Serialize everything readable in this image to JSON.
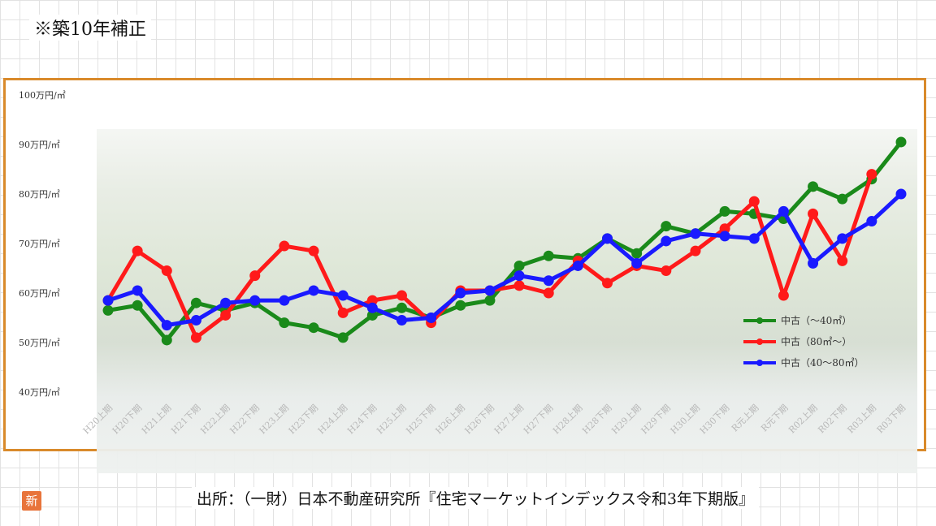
{
  "note": "※築10年補正",
  "source": "出所：（一財）日本不動産研究所『住宅マーケットインデックス令和3年下期版』",
  "stamp_char": "新",
  "chart_data": {
    "type": "line",
    "y_ticks": [
      "100万円/㎡",
      "90万円/㎡",
      "80万円/㎡",
      "70万円/㎡",
      "60万円/㎡",
      "50万円/㎡",
      "40万円/㎡"
    ],
    "ylim": [
      40,
      100
    ],
    "categories": [
      "H20上期",
      "H20下期",
      "H21上期",
      "H21下期",
      "H22上期",
      "H22下期",
      "H23上期",
      "H23下期",
      "H24上期",
      "H24下期",
      "H25上期",
      "H25下期",
      "H26上期",
      "H26下期",
      "H27上期",
      "H27下期",
      "H28上期",
      "H28下期",
      "H29上期",
      "H29下期",
      "H30上期",
      "H30下期",
      "R元上期",
      "R元下期",
      "R02上期",
      "R02下期",
      "R03上期",
      "R03下期"
    ],
    "series": [
      {
        "name": "中古（～40㎡）",
        "color": "#1a8a1a",
        "values": [
          56.5,
          57.5,
          50.5,
          58,
          56.5,
          58,
          54,
          53,
          51,
          55.5,
          57,
          55,
          57.5,
          58.5,
          65.5,
          67.5,
          67,
          71,
          68,
          73.5,
          72,
          76.5,
          76,
          75,
          81.5,
          79,
          83,
          90.5
        ]
      },
      {
        "name": "中古（80㎡～）",
        "color": "#ff1a1a",
        "values": [
          58.5,
          68.5,
          64.5,
          51,
          55.5,
          63.5,
          69.5,
          68.5,
          56,
          58.5,
          59.5,
          54,
          60.5,
          60.5,
          61.5,
          60,
          66.5,
          62,
          65.5,
          64.5,
          68.5,
          73,
          78.5,
          59.5,
          76,
          66.5,
          84,
          null
        ]
      },
      {
        "name": "中古（40～80㎡）",
        "color": "#1a1aff",
        "values": [
          58.5,
          60.5,
          53.5,
          54.5,
          58,
          58.5,
          58.5,
          60.5,
          59.5,
          57,
          54.5,
          55,
          60,
          60.5,
          63.5,
          62.5,
          65.5,
          71,
          66,
          70.5,
          72,
          71.5,
          71,
          76.5,
          66,
          71,
          74.5,
          80
        ]
      }
    ],
    "legend_position": "lower-right"
  }
}
